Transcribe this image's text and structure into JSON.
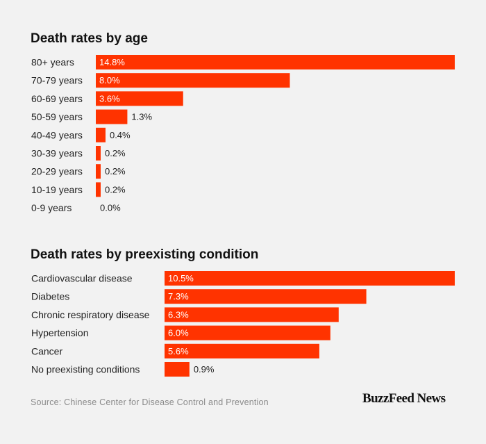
{
  "chart_data": [
    {
      "type": "bar",
      "orientation": "horizontal",
      "title": "Death rates by age",
      "categories": [
        "80+ years",
        "70-79 years",
        "60-69 years",
        "50-59 years",
        "40-49 years",
        "30-39 years",
        "20-29 years",
        "10-19 years",
        "0-9 years"
      ],
      "values": [
        14.8,
        8.0,
        3.6,
        1.3,
        0.4,
        0.2,
        0.2,
        0.2,
        0.0
      ],
      "value_labels": [
        "14.8%",
        "8.0%",
        "3.6%",
        "1.3%",
        "0.4%",
        "0.2%",
        "0.2%",
        "0.2%",
        "0.0%"
      ],
      "xlim": [
        0,
        14.8
      ],
      "unit": "%",
      "grid": false,
      "bar_color": "#ff3300"
    },
    {
      "type": "bar",
      "orientation": "horizontal",
      "title": "Death rates by preexisting condition",
      "categories": [
        "Cardiovascular disease",
        "Diabetes",
        "Chronic respiratory disease",
        "Hypertension",
        "Cancer",
        "No preexisting conditions"
      ],
      "values": [
        10.5,
        7.3,
        6.3,
        6.0,
        5.6,
        0.9
      ],
      "value_labels": [
        "10.5%",
        "7.3%",
        "6.3%",
        "6.0%",
        "5.6%",
        "0.9%"
      ],
      "xlim": [
        0,
        10.5
      ],
      "unit": "%",
      "grid": false,
      "bar_color": "#ff3300"
    }
  ],
  "source": "Source: Chinese Center for Disease Control and Prevention",
  "logo": "BuzzFeed News",
  "colors": {
    "bar": "#ff3300",
    "background": "#f2f2f2",
    "text": "#222222",
    "source_text": "#8a8a8a"
  }
}
